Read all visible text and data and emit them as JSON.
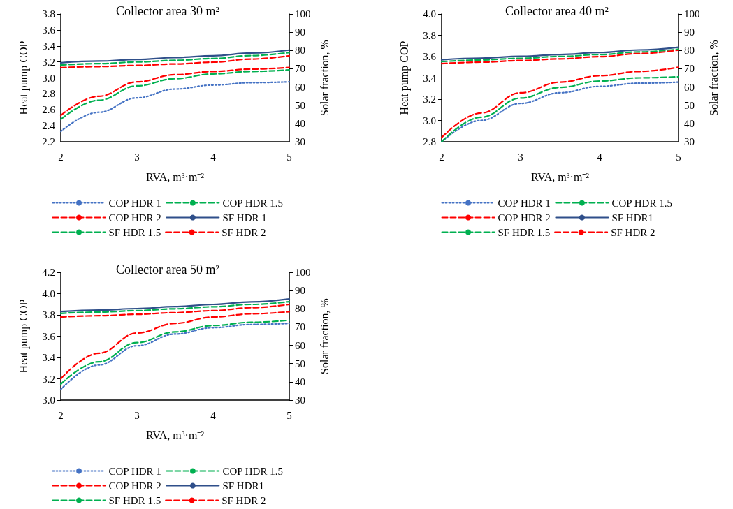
{
  "chart_data": [
    {
      "type": "line",
      "title": "Collector area 30 m²",
      "xlabel": "RVA, m³·m⁻²",
      "ylabel": "Heat pump COP",
      "y2label": "Solar fraction, %",
      "x": [
        2,
        2.5,
        3,
        3.5,
        4,
        4.5,
        5
      ],
      "xlim": [
        2,
        5
      ],
      "xticks": [
        2,
        3,
        4,
        5
      ],
      "ylim": [
        2.2,
        3.8
      ],
      "yticks": [
        {
          "value": 2.2,
          "label": "2.2"
        },
        {
          "value": 2.4,
          "label": "2.4"
        },
        {
          "value": 2.6,
          "label": "2.6"
        },
        {
          "value": 2.8,
          "label": "2.8"
        },
        {
          "value": 3,
          "label": "3.0"
        },
        {
          "value": 3.2,
          "label": "3.2"
        },
        {
          "value": 3.4,
          "label": "3.4"
        },
        {
          "value": 3.6,
          "label": "3.6"
        },
        {
          "value": 3.8,
          "label": "3.8"
        }
      ],
      "y2lim": [
        30,
        100
      ],
      "y2ticks": [
        30,
        40,
        50,
        60,
        70,
        80,
        90,
        100
      ],
      "grid": false,
      "legend": "bottom",
      "marker": "none",
      "series": [
        {
          "name": "COP HDR 1",
          "color": "#4472c4",
          "line_style": "dotted",
          "values": [
            2.33,
            2.57,
            2.75,
            2.86,
            2.91,
            2.94,
            2.95
          ]
        },
        {
          "name": "COP HDR 1.5",
          "color": "#00b050",
          "line_style": "dashed",
          "values": [
            2.48,
            2.72,
            2.9,
            2.99,
            3.05,
            3.08,
            3.1
          ]
        },
        {
          "name": "COP HDR 2",
          "color": "#ff0000",
          "line_style": "dashed",
          "values": [
            2.53,
            2.77,
            2.95,
            3.04,
            3.08,
            3.11,
            3.13
          ]
        },
        {
          "name": "SF HDR 1",
          "color": "#2f4f8a",
          "line_style": "solid",
          "axis": "y2",
          "values": [
            73.3,
            74.2,
            75.1,
            76.1,
            77.1,
            78.6,
            80.2
          ]
        },
        {
          "name": "SF HDR 1.5",
          "color": "#00b050",
          "line_style": "dashed",
          "axis": "y2",
          "values": [
            72.0,
            72.8,
            73.7,
            74.6,
            75.6,
            77.2,
            78.9
          ]
        },
        {
          "name": "SF HDR 2",
          "color": "#ff0000",
          "line_style": "dashed",
          "axis": "y2",
          "values": [
            70.6,
            71.2,
            71.8,
            72.6,
            73.6,
            75.3,
            77.1
          ]
        }
      ]
    },
    {
      "type": "line",
      "title": "Collector area 40 m²",
      "xlabel": "RVA, m³·m⁻²",
      "ylabel": "Heat pump COP",
      "y2label": "Solar fraction, %",
      "x": [
        2,
        2.5,
        3,
        3.5,
        4,
        4.5,
        5
      ],
      "xlim": [
        2,
        5
      ],
      "xticks": [
        2,
        3,
        4,
        5
      ],
      "ylim": [
        2.8,
        4.0
      ],
      "yticks": [
        {
          "value": 2.8,
          "label": "2.8"
        },
        {
          "value": 3,
          "label": "3.0"
        },
        {
          "value": 3.2,
          "label": "3.2"
        },
        {
          "value": 3.4,
          "label": "3.4"
        },
        {
          "value": 3.6,
          "label": "3.6"
        },
        {
          "value": 3.8,
          "label": "3.8"
        },
        {
          "value": 4,
          "label": "4.0"
        }
      ],
      "y2lim": [
        30,
        100
      ],
      "y2ticks": [
        30,
        40,
        50,
        60,
        70,
        80,
        90,
        100
      ],
      "grid": false,
      "legend": "bottom",
      "marker": "none",
      "series": [
        {
          "name": "COP HDR 1",
          "color": "#4472c4",
          "line_style": "dotted",
          "values": [
            2.8,
            3.0,
            3.16,
            3.26,
            3.32,
            3.35,
            3.36
          ]
        },
        {
          "name": "COP HDR 1.5",
          "color": "#00b050",
          "line_style": "dashed",
          "values": [
            2.8,
            3.03,
            3.21,
            3.31,
            3.37,
            3.4,
            3.41
          ]
        },
        {
          "name": "COP HDR 2",
          "color": "#ff0000",
          "line_style": "dashed",
          "values": [
            2.84,
            3.07,
            3.26,
            3.36,
            3.42,
            3.46,
            3.5
          ]
        },
        {
          "name": "SF HDR1",
          "color": "#2f4f8a",
          "line_style": "solid",
          "axis": "y2",
          "values": [
            74.9,
            75.8,
            76.8,
            77.8,
            78.9,
            80.3,
            81.8
          ]
        },
        {
          "name": "SF HDR 1.5",
          "color": "#00b050",
          "line_style": "dashed",
          "axis": "y2",
          "values": [
            73.9,
            74.8,
            75.7,
            76.7,
            77.8,
            79.2,
            80.7
          ]
        },
        {
          "name": "SF HDR 2",
          "color": "#ff0000",
          "line_style": "dashed",
          "axis": "y2",
          "values": [
            72.8,
            73.6,
            74.5,
            75.4,
            76.6,
            78.3,
            80.2
          ]
        }
      ]
    },
    {
      "type": "line",
      "title": "Collector area 50 m²",
      "xlabel": "RVA, m³·m⁻²",
      "ylabel": "Heat pump COP",
      "y2label": "Solar fraction, %",
      "x": [
        2,
        2.5,
        3,
        3.5,
        4,
        4.5,
        5
      ],
      "xlim": [
        2,
        5
      ],
      "xticks": [
        2,
        3,
        4,
        5
      ],
      "ylim": [
        3.0,
        4.2
      ],
      "yticks": [
        {
          "value": 3,
          "label": "3.0"
        },
        {
          "value": 3.2,
          "label": "3.2"
        },
        {
          "value": 3.4,
          "label": "3.4"
        },
        {
          "value": 3.6,
          "label": "3.6"
        },
        {
          "value": 3.8,
          "label": "3.8"
        },
        {
          "value": 4,
          "label": "4.0"
        },
        {
          "value": 4.2,
          "label": "4.2"
        }
      ],
      "y2lim": [
        30,
        100
      ],
      "y2ticks": [
        30,
        40,
        50,
        60,
        70,
        80,
        90,
        100
      ],
      "grid": false,
      "legend": "bottom",
      "marker": "none",
      "series": [
        {
          "name": "COP HDR 1",
          "color": "#4472c4",
          "line_style": "dotted",
          "values": [
            3.1,
            3.33,
            3.51,
            3.62,
            3.68,
            3.71,
            3.72
          ]
        },
        {
          "name": "COP HDR 1.5",
          "color": "#00b050",
          "line_style": "dashed",
          "values": [
            3.15,
            3.36,
            3.54,
            3.64,
            3.7,
            3.73,
            3.75
          ]
        },
        {
          "name": "COP HDR 2",
          "color": "#ff0000",
          "line_style": "dashed",
          "values": [
            3.2,
            3.44,
            3.63,
            3.72,
            3.78,
            3.81,
            3.83
          ]
        },
        {
          "name": "SF HDR1",
          "color": "#2f4f8a",
          "line_style": "solid",
          "axis": "y2",
          "values": [
            78.5,
            79.3,
            80.1,
            81.2,
            82.4,
            83.8,
            85.4
          ]
        },
        {
          "name": "SF HDR 1.5",
          "color": "#00b050",
          "line_style": "dashed",
          "axis": "y2",
          "values": [
            77.5,
            78.2,
            79.0,
            80.0,
            81.1,
            82.4,
            83.9
          ]
        },
        {
          "name": "SF HDR 2",
          "color": "#ff0000",
          "line_style": "dashed",
          "axis": "y2",
          "values": [
            75.5,
            76.2,
            77.0,
            77.9,
            79.0,
            80.6,
            82.4
          ]
        }
      ]
    }
  ]
}
